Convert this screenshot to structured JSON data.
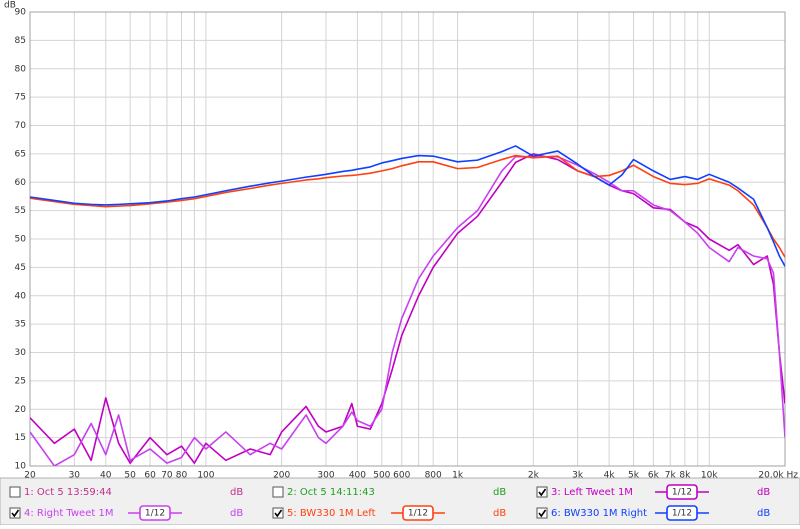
{
  "chart_data": {
    "type": "line",
    "y_label": "dB",
    "x_log": true,
    "grid": true,
    "xlim": [
      20,
      20000
    ],
    "ylim": [
      10,
      90
    ],
    "yticks": [
      10,
      15,
      20,
      25,
      30,
      35,
      40,
      45,
      50,
      55,
      60,
      65,
      70,
      75,
      80,
      85,
      90
    ],
    "xticks": [
      20,
      30,
      40,
      50,
      60,
      70,
      80,
      100,
      200,
      300,
      400,
      500,
      600,
      800,
      {
        "value": 1000,
        "label": "1k"
      },
      {
        "value": 2000,
        "label": "2k"
      },
      {
        "value": 3000,
        "label": "3k"
      },
      {
        "value": 4000,
        "label": "4k"
      },
      {
        "value": 5000,
        "label": "5k"
      },
      {
        "value": 6000,
        "label": "6k"
      },
      {
        "value": 7000,
        "label": "7k"
      },
      {
        "value": 8000,
        "label": "8k"
      },
      {
        "value": 10000,
        "label": "10k"
      },
      {
        "value": 20000,
        "label": "20.0k Hz"
      }
    ],
    "x_grid_unlabeled": [
      90,
      700,
      9000
    ],
    "x": [
      20,
      25,
      30,
      35,
      40,
      45,
      50,
      60,
      70,
      80,
      90,
      100,
      120,
      150,
      180,
      200,
      250,
      280,
      300,
      350,
      380,
      400,
      450,
      500,
      550,
      600,
      700,
      800,
      1000,
      1200,
      1500,
      1700,
      2000,
      2500,
      3000,
      3500,
      4000,
      4500,
      5000,
      6000,
      7000,
      8000,
      9000,
      10000,
      12000,
      13000,
      15000,
      17000,
      18000,
      19000,
      20000
    ],
    "series": [
      {
        "name": "1: Oct 5 13:59:44",
        "color": "#c0308a",
        "checked": false,
        "unit": "dB"
      },
      {
        "name": "2: Oct 5 14:11:43",
        "color": "#20a020",
        "checked": false,
        "unit": "dB"
      },
      {
        "name": "3: Left Tweet 1M",
        "color": "#c000c0",
        "checked": true,
        "smoothing": "1/12",
        "unit": "dB",
        "values": [
          18.5,
          14,
          16.5,
          11,
          22,
          14,
          10.5,
          15,
          12,
          13.5,
          10.5,
          14,
          11,
          13,
          12,
          16,
          20.5,
          17,
          16,
          17,
          21,
          17,
          16.5,
          21,
          27,
          33,
          40,
          45,
          51,
          54,
          60,
          63.5,
          65,
          64,
          62,
          61,
          59.5,
          58.5,
          58,
          55.5,
          55.2,
          53,
          52,
          50,
          48,
          49,
          45.5,
          47,
          42,
          30,
          21
        ]
      },
      {
        "name": "4: Right Tweet 1M",
        "color": "#c840f0",
        "checked": true,
        "smoothing": "1/12",
        "unit": "dB",
        "values": [
          16,
          10,
          12,
          17.5,
          12,
          19,
          11,
          13,
          10.5,
          11.5,
          15,
          13,
          16,
          12,
          14,
          13,
          19,
          15,
          14,
          17,
          19.5,
          18,
          17,
          20,
          30,
          36,
          43,
          47,
          52,
          55,
          62,
          64.5,
          64.5,
          64.5,
          63,
          61.5,
          60,
          58.5,
          58.5,
          56,
          55,
          53,
          51,
          48.5,
          46,
          48.5,
          47,
          46.5,
          44,
          30,
          15
        ]
      },
      {
        "name": "5: BW330 1M Left",
        "color": "#ff4010",
        "checked": true,
        "smoothing": "1/12",
        "unit": "dB",
        "values": [
          57.2,
          56.6,
          56.1,
          55.9,
          55.7,
          55.8,
          55.9,
          56.2,
          56.5,
          56.8,
          57.1,
          57.5,
          58.2,
          58.9,
          59.5,
          59.8,
          60.4,
          60.6,
          60.8,
          61.1,
          61.2,
          61.3,
          61.6,
          62.0,
          62.4,
          62.9,
          63.6,
          63.6,
          62.4,
          62.6,
          64.0,
          64.7,
          64.3,
          64.6,
          62.0,
          61.0,
          61.2,
          62.0,
          63.0,
          61.0,
          59.8,
          59.6,
          59.8,
          60.6,
          59.5,
          58.5,
          56.0,
          52.0,
          50.0,
          48.5,
          46.8
        ]
      },
      {
        "name": "6: BW330 1M Right",
        "color": "#1040ff",
        "checked": true,
        "smoothing": "1/12",
        "unit": "dB",
        "values": [
          57.4,
          56.8,
          56.3,
          56.1,
          56.0,
          56.1,
          56.2,
          56.4,
          56.7,
          57.1,
          57.4,
          57.8,
          58.5,
          59.3,
          59.9,
          60.2,
          60.9,
          61.2,
          61.4,
          61.9,
          62.1,
          62.3,
          62.7,
          63.4,
          63.8,
          64.2,
          64.7,
          64.6,
          63.6,
          63.9,
          65.4,
          66.4,
          64.6,
          65.5,
          63.2,
          61.0,
          59.5,
          61.3,
          64.0,
          62.0,
          60.5,
          61.0,
          60.5,
          61.4,
          60.0,
          59.0,
          57.0,
          52.0,
          49.5,
          47.0,
          45.2
        ]
      }
    ]
  }
}
